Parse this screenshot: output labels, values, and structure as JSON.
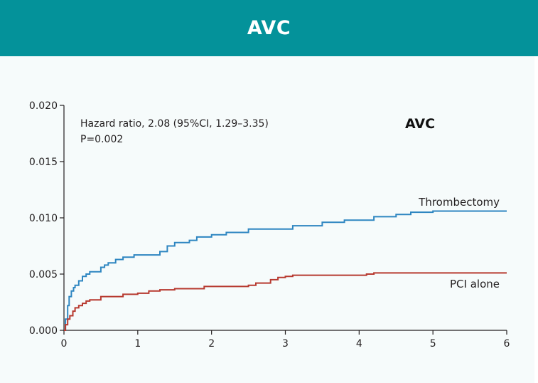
{
  "header": {
    "title": "AVC"
  },
  "chart_data": {
    "type": "line",
    "title": "AVC",
    "annotation": {
      "line1": "Hazard ratio, 2.08 (95%CI, 1.29–3.35)",
      "line2": "P=0.002"
    },
    "xlim": [
      0,
      6
    ],
    "ylim": [
      0,
      0.02
    ],
    "x_ticks": [
      0,
      1,
      2,
      3,
      4,
      5,
      6
    ],
    "y_ticks": [
      "0.000",
      "0.005",
      "0.010",
      "0.015",
      "0.020"
    ],
    "grid": false,
    "series": [
      {
        "name": "Thrombectomy",
        "color": "#2e86c1",
        "step": true,
        "x": [
          0,
          0.02,
          0.05,
          0.07,
          0.1,
          0.13,
          0.15,
          0.2,
          0.25,
          0.3,
          0.35,
          0.5,
          0.55,
          0.6,
          0.7,
          0.8,
          0.95,
          1.3,
          1.4,
          1.5,
          1.7,
          1.8,
          2.0,
          2.2,
          2.5,
          3.1,
          3.5,
          3.8,
          4.2,
          4.5,
          4.7,
          5.0,
          6.0
        ],
        "y": [
          0,
          0.001,
          0.0022,
          0.003,
          0.0035,
          0.0038,
          0.004,
          0.0044,
          0.0048,
          0.005,
          0.0052,
          0.0056,
          0.0058,
          0.006,
          0.0063,
          0.0065,
          0.0067,
          0.007,
          0.0075,
          0.0078,
          0.008,
          0.0083,
          0.0085,
          0.0087,
          0.009,
          0.0093,
          0.0096,
          0.0098,
          0.0101,
          0.0103,
          0.0105,
          0.0106,
          0.0106
        ]
      },
      {
        "name": "PCI alone",
        "color": "#b7392f",
        "step": true,
        "x": [
          0,
          0.02,
          0.05,
          0.08,
          0.12,
          0.15,
          0.2,
          0.25,
          0.3,
          0.35,
          0.5,
          0.8,
          1.0,
          1.15,
          1.3,
          1.5,
          1.9,
          2.5,
          2.6,
          2.8,
          2.9,
          3.0,
          3.1,
          4.1,
          4.2,
          6.0
        ],
        "y": [
          0,
          0.0005,
          0.001,
          0.0013,
          0.0017,
          0.002,
          0.0022,
          0.0024,
          0.0026,
          0.0027,
          0.003,
          0.0032,
          0.0033,
          0.0035,
          0.0036,
          0.0037,
          0.0039,
          0.004,
          0.0042,
          0.0045,
          0.0047,
          0.0048,
          0.0049,
          0.005,
          0.0051,
          0.0051
        ]
      }
    ]
  }
}
